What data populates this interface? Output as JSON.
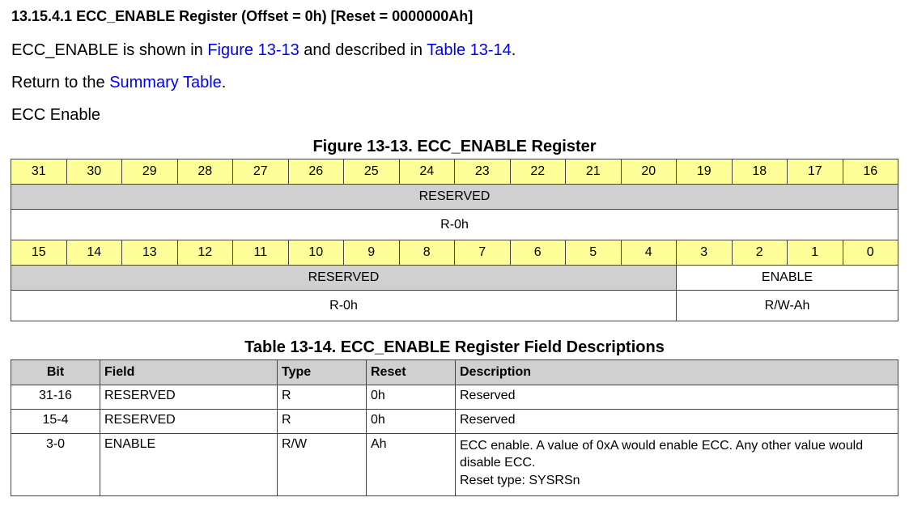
{
  "heading": "13.15.4.1 ECC_ENABLE Register (Offset = 0h) [Reset = 0000000Ah]",
  "intro": {
    "pre": "ECC_ENABLE is shown in ",
    "link1": "Figure 13-13",
    "mid": " and described in ",
    "link2": "Table 13-14",
    "post": "."
  },
  "return": {
    "pre": "Return to the ",
    "link": "Summary Table",
    "post": "."
  },
  "summary": "ECC Enable",
  "figure": {
    "caption": "Figure 13-13. ECC_ENABLE Register",
    "bits_high": [
      "31",
      "30",
      "29",
      "28",
      "27",
      "26",
      "25",
      "24",
      "23",
      "22",
      "21",
      "20",
      "19",
      "18",
      "17",
      "16"
    ],
    "bits_low": [
      "15",
      "14",
      "13",
      "12",
      "11",
      "10",
      "9",
      "8",
      "7",
      "6",
      "5",
      "4",
      "3",
      "2",
      "1",
      "0"
    ],
    "high_field": "RESERVED",
    "high_access": "R-0h",
    "low_reserved": "RESERVED",
    "low_reserved_access": "R-0h",
    "low_enable": "ENABLE",
    "low_enable_access": "R/W-Ah"
  },
  "table": {
    "caption": "Table 13-14. ECC_ENABLE Register Field Descriptions",
    "headers": [
      "Bit",
      "Field",
      "Type",
      "Reset",
      "Description"
    ],
    "rows": [
      {
        "bit": "31-16",
        "field": "RESERVED",
        "type": "R",
        "reset": "0h",
        "desc": "Reserved"
      },
      {
        "bit": "15-4",
        "field": "RESERVED",
        "type": "R",
        "reset": "0h",
        "desc": "Reserved"
      },
      {
        "bit": "3-0",
        "field": "ENABLE",
        "type": "R/W",
        "reset": "Ah",
        "desc": "ECC enable. A value of 0xA would enable ECC. Any other value would disable ECC.",
        "desc2": "Reset type: SYSRSn"
      }
    ]
  }
}
